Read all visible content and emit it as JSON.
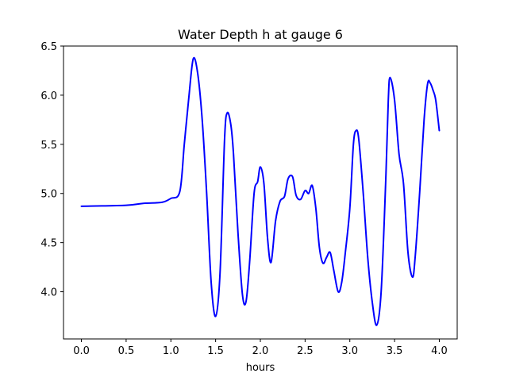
{
  "chart_data": {
    "type": "line",
    "title": "Water Depth h at gauge 6",
    "xlabel": "hours",
    "ylabel": "",
    "xlim": [
      -0.2,
      4.2
    ],
    "ylim": [
      3.52,
      6.5
    ],
    "xticks": [
      0.0,
      0.5,
      1.0,
      1.5,
      2.0,
      2.5,
      3.0,
      3.5,
      4.0
    ],
    "xtick_labels": [
      "0.0",
      "0.5",
      "1.0",
      "1.5",
      "2.0",
      "2.5",
      "3.0",
      "3.5",
      "4.0"
    ],
    "yticks": [
      4.0,
      4.5,
      5.0,
      5.5,
      6.0,
      6.5
    ],
    "ytick_labels": [
      "4.0",
      "4.5",
      "5.0",
      "5.5",
      "6.0",
      "6.5"
    ],
    "grid": false,
    "series": [
      {
        "color": "#0000ff",
        "x": [
          0.0,
          0.5,
          0.7,
          0.9,
          1.0,
          1.1,
          1.15,
          1.2,
          1.25,
          1.3,
          1.35,
          1.4,
          1.45,
          1.5,
          1.55,
          1.6,
          1.63,
          1.67,
          1.7,
          1.75,
          1.8,
          1.84,
          1.88,
          1.93,
          1.97,
          2.0,
          2.04,
          2.08,
          2.12,
          2.17,
          2.22,
          2.27,
          2.31,
          2.36,
          2.4,
          2.45,
          2.5,
          2.54,
          2.58,
          2.62,
          2.66,
          2.7,
          2.74,
          2.78,
          2.82,
          2.87,
          2.91,
          2.95,
          3.0,
          3.04,
          3.07,
          3.1,
          3.15,
          3.2,
          3.25,
          3.3,
          3.35,
          3.4,
          3.43,
          3.45,
          3.5,
          3.55,
          3.6,
          3.65,
          3.7,
          3.73,
          3.78,
          3.83,
          3.87,
          3.9,
          3.93,
          3.96,
          4.0
        ],
        "y": [
          4.87,
          4.88,
          4.9,
          4.91,
          4.95,
          5.02,
          5.5,
          5.97,
          6.37,
          6.22,
          5.75,
          5.0,
          4.1,
          3.75,
          4.2,
          5.55,
          5.82,
          5.7,
          5.4,
          4.6,
          3.97,
          3.9,
          4.3,
          5.0,
          5.12,
          5.27,
          5.1,
          4.55,
          4.3,
          4.72,
          4.92,
          4.97,
          5.15,
          5.17,
          4.98,
          4.94,
          5.03,
          5.0,
          5.08,
          4.85,
          4.45,
          4.29,
          4.35,
          4.4,
          4.22,
          4.0,
          4.1,
          4.4,
          4.85,
          5.5,
          5.64,
          5.55,
          5.0,
          4.35,
          3.9,
          3.66,
          4.0,
          5.1,
          5.95,
          6.18,
          5.95,
          5.4,
          5.1,
          4.4,
          4.15,
          4.35,
          5.0,
          5.75,
          6.12,
          6.12,
          6.05,
          5.95,
          5.64
        ]
      }
    ]
  }
}
